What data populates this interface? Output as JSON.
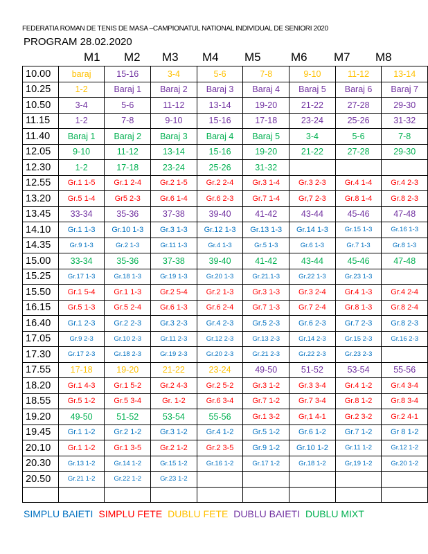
{
  "title": "FEDERATIA ROMAN DE TENIS DE MASA –CAMPIONATUL NATIONAL INDIVIDUAL DE SENIORI 2020",
  "program": "PROGRAM 28.02.2020",
  "colors": {
    "o": "#ffc000",
    "p": "#7030a0",
    "g": "#00b050",
    "r": "#ff0000",
    "b": "#0070c0"
  },
  "columns": [
    "M1",
    "M2",
    "M3",
    "M4",
    "M5",
    "M6",
    "M7",
    "M8"
  ],
  "rows": [
    {
      "time": "10.00",
      "cells": [
        [
          "baraj",
          "o"
        ],
        [
          "15-16",
          "p"
        ],
        [
          "3-4",
          "o"
        ],
        [
          "5-6",
          "o"
        ],
        [
          "7-8",
          "o"
        ],
        [
          "9-10",
          "o"
        ],
        [
          "11-12",
          "o"
        ],
        [
          "13-14",
          "o"
        ]
      ]
    },
    {
      "time": "10.25",
      "cells": [
        [
          "1-2",
          "o"
        ],
        [
          "Baraj 1",
          "p"
        ],
        [
          "Baraj 2",
          "p"
        ],
        [
          "Baraj 3",
          "p"
        ],
        [
          "Baraj 4",
          "p"
        ],
        [
          "Baraj 5",
          "p"
        ],
        [
          "Baraj 6",
          "p"
        ],
        [
          "Baraj 7",
          "p"
        ]
      ]
    },
    {
      "time": "10.50",
      "cells": [
        [
          "3-4",
          "p"
        ],
        [
          "5-6",
          "p"
        ],
        [
          "11-12",
          "p"
        ],
        [
          "13-14",
          "p"
        ],
        [
          "19-20",
          "p"
        ],
        [
          "21-22",
          "p"
        ],
        [
          "27-28",
          "p"
        ],
        [
          "29-30",
          "p"
        ]
      ]
    },
    {
      "time": "11.15",
      "cells": [
        [
          "1-2",
          "p"
        ],
        [
          "7-8",
          "p"
        ],
        [
          "9-10",
          "p"
        ],
        [
          "15-16",
          "p"
        ],
        [
          "17-18",
          "p"
        ],
        [
          "23-24",
          "p"
        ],
        [
          "25-26",
          "p"
        ],
        [
          "31-32",
          "p"
        ]
      ]
    },
    {
      "time": "11.40",
      "cells": [
        [
          "Baraj 1",
          "g"
        ],
        [
          "Baraj 2",
          "g"
        ],
        [
          "Baraj 3",
          "g"
        ],
        [
          "Baraj 4",
          "g"
        ],
        [
          "Baraj 5",
          "g"
        ],
        [
          "3-4",
          "g"
        ],
        [
          "5-6",
          "g"
        ],
        [
          "7-8",
          "g"
        ]
      ]
    },
    {
      "time": "12.05",
      "cells": [
        [
          "9-10",
          "g"
        ],
        [
          "11-12",
          "g"
        ],
        [
          "13-14",
          "g"
        ],
        [
          "15-16",
          "g"
        ],
        [
          "19-20",
          "g"
        ],
        [
          "21-22",
          "g"
        ],
        [
          "27-28",
          "g"
        ],
        [
          "29-30",
          "g"
        ]
      ]
    },
    {
      "time": "12.30",
      "cells": [
        [
          "1-2",
          "g"
        ],
        [
          "17-18",
          "g"
        ],
        [
          "23-24",
          "g"
        ],
        [
          "25-26",
          "g"
        ],
        [
          "31-32",
          "g"
        ],
        [
          "",
          ""
        ],
        [
          "",
          ""
        ],
        [
          "",
          ""
        ]
      ]
    },
    {
      "time": "12.55",
      "size": "md",
      "cells": [
        [
          "Gr.1 1-5",
          "r"
        ],
        [
          "Gr.1 2-4",
          "r"
        ],
        [
          "Gr.2 1-5",
          "r"
        ],
        [
          "Gr.2 2-4",
          "r"
        ],
        [
          "Gr.3 1-4",
          "r"
        ],
        [
          "Gr.3 2-3",
          "r"
        ],
        [
          "Gr.4 1-4",
          "r"
        ],
        [
          "Gr.4 2-3",
          "r"
        ]
      ]
    },
    {
      "time": "13.20",
      "size": "md",
      "cells": [
        [
          "Gr.5 1-4",
          "r"
        ],
        [
          "Gr5 2-3",
          "r"
        ],
        [
          "Gr.6 1-4",
          "r"
        ],
        [
          "Gr.6 2-3",
          "r"
        ],
        [
          "Gr.7 1-4",
          "r"
        ],
        [
          "Gr,7 2-3",
          "r"
        ],
        [
          "Gr.8 1-4",
          "r"
        ],
        [
          "Gr.8 2-3",
          "r"
        ]
      ]
    },
    {
      "time": "13.45",
      "cells": [
        [
          "33-34",
          "p"
        ],
        [
          "35-36",
          "p"
        ],
        [
          "37-38",
          "p"
        ],
        [
          "39-40",
          "p"
        ],
        [
          "41-42",
          "p"
        ],
        [
          "43-44",
          "p"
        ],
        [
          "45-46",
          "p"
        ],
        [
          "47-48",
          "p"
        ]
      ]
    },
    {
      "time": "14.10",
      "size": "md",
      "cells": [
        [
          "Gr.1 1-3",
          "b"
        ],
        [
          "Gr.10 1-3",
          "b"
        ],
        [
          "Gr.3 1-3",
          "b"
        ],
        [
          "Gr.12 1-3",
          "b"
        ],
        [
          "Gr.13 1-3",
          "b"
        ],
        [
          "Gr.14 1-3",
          "b"
        ],
        [
          "Gr.15 1-3",
          "b",
          "sm"
        ],
        [
          "Gr.16 1-3",
          "b",
          "sm"
        ]
      ]
    },
    {
      "time": "14.35",
      "size": "sm",
      "cells": [
        [
          "Gr.9 1-3",
          "b"
        ],
        [
          "Gr.2 1-3",
          "b"
        ],
        [
          "Gr.11 1-3",
          "b"
        ],
        [
          "Gr.4 1-3",
          "b"
        ],
        [
          "Gr.5 1-3",
          "b"
        ],
        [
          "Gr.6 1-3",
          "b"
        ],
        [
          "Gr.7 1-3",
          "b"
        ],
        [
          "Gr.8 1-3",
          "b"
        ]
      ]
    },
    {
      "time": "15.00",
      "cells": [
        [
          "33-34",
          "g"
        ],
        [
          "35-36",
          "g"
        ],
        [
          "37-38",
          "g"
        ],
        [
          "39-40",
          "g"
        ],
        [
          "41-42",
          "g"
        ],
        [
          "43-44",
          "g"
        ],
        [
          "45-46",
          "g"
        ],
        [
          "47-48",
          "g"
        ]
      ]
    },
    {
      "time": "15.25",
      "size": "sm",
      "cells": [
        [
          "Gr.17 1-3",
          "b"
        ],
        [
          "Gr.18 1-3",
          "b"
        ],
        [
          "Gr.19 1-3",
          "b"
        ],
        [
          "Gr.20 1-3",
          "b"
        ],
        [
          "Gr.21.1-3",
          "b"
        ],
        [
          "Gr.22 1-3",
          "b"
        ],
        [
          "Gr.23 1-3",
          "b"
        ],
        [
          "",
          ""
        ]
      ]
    },
    {
      "time": "15.50",
      "size": "md",
      "cells": [
        [
          "Gr.1 5-4",
          "r"
        ],
        [
          "Gr.1 1-3",
          "r"
        ],
        [
          "Gr.2 5-4",
          "r"
        ],
        [
          "Gr.2 1-3",
          "r"
        ],
        [
          "Gr.3 1-3",
          "r"
        ],
        [
          "Gr.3 2-4",
          "r"
        ],
        [
          "Gr.4 1-3",
          "r"
        ],
        [
          "Gr.4 2-4",
          "r"
        ]
      ]
    },
    {
      "time": "16.15",
      "size": "md",
      "cells": [
        [
          "Gr.5 1-3",
          "r"
        ],
        [
          "Gr.5 2-4",
          "r"
        ],
        [
          "Gr.6 1-3",
          "r"
        ],
        [
          "Gr.6 2-4",
          "r"
        ],
        [
          "Gr.7 1-3",
          "r"
        ],
        [
          "Gr.7 2-4",
          "r"
        ],
        [
          "Gr.8 1-3",
          "r"
        ],
        [
          "Gr.8 2-4",
          "r"
        ]
      ]
    },
    {
      "time": "16.40",
      "size": "md",
      "cells": [
        [
          "Gr.1 2-3",
          "b"
        ],
        [
          "Gr.2 2-3",
          "b"
        ],
        [
          "Gr.3 2-3",
          "b"
        ],
        [
          "Gr.4 2-3",
          "b"
        ],
        [
          "Gr.5 2-3",
          "b"
        ],
        [
          "Gr.6 2-3",
          "b"
        ],
        [
          "Gr.7 2-3",
          "b"
        ],
        [
          "Gr.8 2-3",
          "b"
        ]
      ]
    },
    {
      "time": "17.05",
      "size": "sm",
      "cells": [
        [
          "Gr.9 2-3",
          "b"
        ],
        [
          "Gr.10 2-3",
          "b"
        ],
        [
          "Gr.11 2-3",
          "b"
        ],
        [
          "Gr.12 2-3",
          "b"
        ],
        [
          "Gr.13 2-3",
          "b"
        ],
        [
          "Gr.14 2-3",
          "b"
        ],
        [
          "Gr.15 2-3",
          "b"
        ],
        [
          "Gr.16 2-3",
          "b"
        ]
      ]
    },
    {
      "time": "17.30",
      "size": "sm",
      "cells": [
        [
          "Gr.17 2-3",
          "b"
        ],
        [
          "Gr.18 2-3",
          "b"
        ],
        [
          "Gr.19 2-3",
          "b"
        ],
        [
          "Gr.20 2-3",
          "b"
        ],
        [
          "Gr.21 2-3",
          "b"
        ],
        [
          "Gr.22 2-3",
          "b"
        ],
        [
          "Gr.23 2-3",
          "b"
        ],
        [
          "",
          ""
        ]
      ]
    },
    {
      "time": "17.55",
      "cells": [
        [
          "17-18",
          "o"
        ],
        [
          "19-20",
          "o"
        ],
        [
          "21-22",
          "o"
        ],
        [
          "23-24",
          "o"
        ],
        [
          "49-50",
          "p"
        ],
        [
          "51-52",
          "p"
        ],
        [
          "53-54",
          "p"
        ],
        [
          "55-56",
          "p"
        ]
      ]
    },
    {
      "time": "18.20",
      "size": "md",
      "cells": [
        [
          "Gr.1 4-3",
          "r"
        ],
        [
          "Gr.1 5-2",
          "r"
        ],
        [
          "Gr.2 4-3",
          "r"
        ],
        [
          "Gr.2 5-2",
          "r"
        ],
        [
          "Gr.3 1-2",
          "r"
        ],
        [
          "Gr.3 3-4",
          "r"
        ],
        [
          "Gr.4 1-2",
          "r"
        ],
        [
          "Gr.4 3-4",
          "r"
        ]
      ]
    },
    {
      "time": "18.55",
      "size": "md",
      "cells": [
        [
          "Gr.5 1-2",
          "r"
        ],
        [
          "Gr.5 3-4",
          "r"
        ],
        [
          "Gr. 1-2",
          "r"
        ],
        [
          "Gr.6 3-4",
          "r"
        ],
        [
          "Gr.7 1-2",
          "r"
        ],
        [
          "Gr.7 3-4",
          "r"
        ],
        [
          "Gr.8 1-2",
          "r"
        ],
        [
          "Gr.8 3-4",
          "r"
        ]
      ]
    },
    {
      "time": "19.20",
      "cells": [
        [
          "49-50",
          "g"
        ],
        [
          "51-52",
          "g"
        ],
        [
          "53-54",
          "g"
        ],
        [
          "55-56",
          "g"
        ],
        [
          "Gr.1 3-2",
          "r",
          "md"
        ],
        [
          "Gr,1 4-1",
          "r",
          "md"
        ],
        [
          "Gr.2 3-2",
          "r",
          "md"
        ],
        [
          "Gr.2 4-1",
          "r",
          "md"
        ]
      ]
    },
    {
      "time": "19.45",
      "size": "md",
      "cells": [
        [
          "Gr.1 1-2",
          "b"
        ],
        [
          "Gr.2 1-2",
          "b"
        ],
        [
          "Gr.3 1-2",
          "b"
        ],
        [
          "Gr.4 1-2",
          "b"
        ],
        [
          "Gr.5 1-2",
          "b"
        ],
        [
          "Gr.6 1-2",
          "b"
        ],
        [
          "Gr.7 1-2",
          "b"
        ],
        [
          "Gr 8 1-2",
          "b"
        ]
      ]
    },
    {
      "time": "20.10",
      "size": "md",
      "cells": [
        [
          "Gr.1 1-2",
          "r"
        ],
        [
          "Gr.1 3-5",
          "r"
        ],
        [
          "Gr.2 1-2",
          "r"
        ],
        [
          "Gr.2 3-5",
          "r"
        ],
        [
          "Gr.9 1-2",
          "b"
        ],
        [
          "Gr.10 1-2",
          "b"
        ],
        [
          "Gr.11 1-2",
          "b",
          "sm"
        ],
        [
          "Gr.12 1-2",
          "b",
          "sm"
        ]
      ]
    },
    {
      "time": "20.30",
      "size": "sm",
      "cells": [
        [
          "Gr.13 1-2",
          "b"
        ],
        [
          "Gr.14 1-2",
          "b"
        ],
        [
          "Gr.15 1-2",
          "b"
        ],
        [
          "Gr.16 1-2",
          "b"
        ],
        [
          "Gr.17 1-2",
          "b"
        ],
        [
          "Gr.18 1-2",
          "b"
        ],
        [
          "Gr,19 1-2",
          "b"
        ],
        [
          "Gr.20 1-2",
          "b"
        ]
      ]
    },
    {
      "time": "20.50",
      "size": "sm",
      "cells": [
        [
          "Gr.21 1-2",
          "b"
        ],
        [
          "Gr.22 1-2",
          "b"
        ],
        [
          "Gr.23 1-2",
          "b"
        ],
        [
          "",
          ""
        ],
        [
          "",
          ""
        ],
        [
          "",
          ""
        ],
        [
          "",
          ""
        ],
        [
          "",
          ""
        ]
      ]
    },
    {
      "time": "",
      "cells": [
        [
          "",
          ""
        ],
        [
          "",
          ""
        ],
        [
          "",
          ""
        ],
        [
          "",
          ""
        ],
        [
          "",
          ""
        ],
        [
          "",
          ""
        ],
        [
          "",
          ""
        ],
        [
          "",
          ""
        ]
      ]
    }
  ],
  "legend": [
    {
      "label": "SIMPLU BAIETI",
      "color": "#0070c0"
    },
    {
      "label": "SIMPLU FETE",
      "color": "#ff0000"
    },
    {
      "label": "DUBLU FETE",
      "color": "#ffc000"
    },
    {
      "label": "DUBLU BAIETI",
      "color": "#7030a0"
    },
    {
      "label": "DUBLU MIXT",
      "color": "#00b050"
    }
  ]
}
